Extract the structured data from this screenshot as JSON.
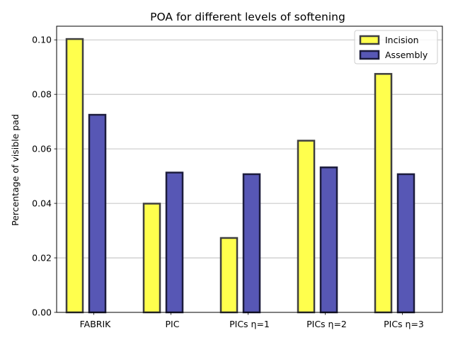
{
  "chart_data": {
    "type": "bar",
    "title": "POA for different levels of softening",
    "xlabel": "",
    "ylabel": "Percentage of visible pad",
    "categories": [
      "FABRIK",
      "PIC",
      "PICs η=1",
      "PICs η=2",
      "PICs η=3"
    ],
    "series": [
      {
        "name": "Incision",
        "values": [
          0.1003,
          0.0399,
          0.0273,
          0.063,
          0.0875
        ],
        "color": "#ffff4d",
        "edge_color": "#3f3f3f"
      },
      {
        "name": "Assembly",
        "values": [
          0.0725,
          0.0513,
          0.0507,
          0.0532,
          0.0507
        ],
        "color": "#5757b5",
        "edge_color": "#1c1c3c"
      }
    ],
    "ylim": [
      0,
      0.105
    ],
    "yticks": [
      0.0,
      0.02,
      0.04,
      0.06,
      0.08,
      0.1
    ],
    "ytick_labels": [
      "0.00",
      "0.02",
      "0.04",
      "0.06",
      "0.08",
      "0.10"
    ],
    "grid": "y",
    "legend_position": "top-right"
  }
}
